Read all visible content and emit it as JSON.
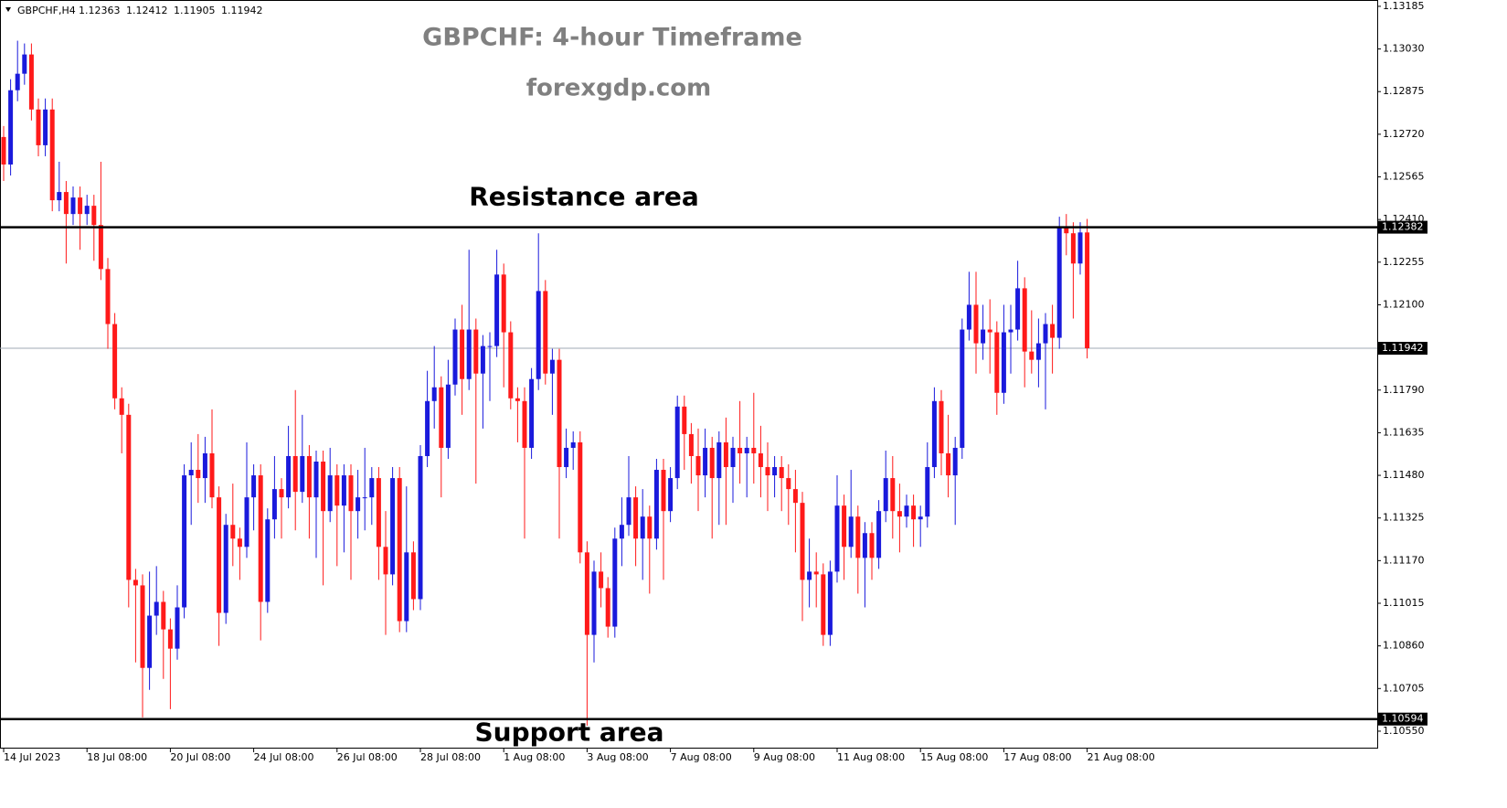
{
  "chart_data": {
    "type": "candlestick",
    "symbol": "GBPCHF,H4",
    "title": "GBPCHF: 4-hour Timeframe",
    "subtitle": "forexgdp.com",
    "up_color": "#1a1adc",
    "down_color": "#ff1a1a",
    "categories": [
      "14 Jul 2023",
      null,
      null,
      null,
      null,
      null,
      null,
      null,
      null,
      null,
      null,
      null,
      "18 Jul 08:00",
      null,
      null,
      null,
      null,
      null,
      null,
      null,
      null,
      null,
      null,
      null,
      "20 Jul 08:00",
      null,
      null,
      null,
      null,
      null,
      null,
      null,
      null,
      null,
      null,
      null,
      "24 Jul 08:00",
      null,
      null,
      null,
      null,
      null,
      null,
      null,
      null,
      null,
      null,
      null,
      "26 Jul 08:00",
      null,
      null,
      null,
      null,
      null,
      null,
      null,
      null,
      null,
      null,
      null,
      "28 Jul 08:00",
      null,
      null,
      null,
      null,
      null,
      null,
      null,
      null,
      null,
      null,
      null,
      "1 Aug 08:00",
      null,
      null,
      null,
      null,
      null,
      null,
      null,
      null,
      null,
      null,
      null,
      "3 Aug 08:00",
      null,
      null,
      null,
      null,
      null,
      null,
      null,
      null,
      null,
      null,
      null,
      "7 Aug 08:00",
      null,
      null,
      null,
      null,
      null,
      null,
      null,
      null,
      null,
      null,
      null,
      "9 Aug 08:00",
      null,
      null,
      null,
      null,
      null,
      null,
      null,
      null,
      null,
      null,
      null,
      "11 Aug 08:00",
      null,
      null,
      null,
      null,
      null,
      null,
      null,
      null,
      null,
      null,
      null,
      "15 Aug 08:00",
      null,
      null,
      null,
      null,
      null,
      null,
      null,
      null,
      null,
      null,
      null,
      "17 Aug 08:00",
      null,
      null,
      null,
      null,
      null,
      null,
      null,
      null,
      null,
      null,
      null,
      "21 Aug 08:00"
    ],
    "open": [
      1.1271,
      1.1261,
      1.1288,
      1.1294,
      1.1301,
      1.1281,
      1.1268,
      1.1281,
      1.1248,
      1.1251,
      1.1243,
      1.1249,
      1.1243,
      1.1246,
      1.1239,
      1.1223,
      1.1203,
      1.1176,
      1.117,
      1.111,
      1.1108,
      1.1078,
      1.1097,
      1.1102,
      1.1092,
      1.1085,
      1.11,
      1.1148,
      1.115,
      1.1147,
      1.1156,
      1.114,
      1.1098,
      1.113,
      1.1125,
      1.1122,
      1.114,
      1.1148,
      1.1102,
      1.1132,
      1.1143,
      1.114,
      1.1155,
      1.1142,
      1.1155,
      1.114,
      1.1153,
      1.1135,
      1.1148,
      1.1137,
      1.1148,
      1.1135,
      1.114,
      1.114,
      1.1147,
      1.1122,
      1.1112,
      1.1147,
      1.1095,
      1.112,
      1.1103,
      1.1155,
      1.1175,
      1.118,
      1.1158,
      1.1181,
      1.1201,
      1.1183,
      1.1201,
      1.1185,
      1.1195,
      1.1195,
      1.1221,
      1.12,
      1.1176,
      1.1175,
      1.1158,
      1.1183,
      1.1215,
      1.1185,
      1.119,
      1.1151,
      1.1158,
      1.116,
      1.112,
      1.109,
      1.1113,
      1.1107,
      1.1093,
      1.1125,
      1.113,
      1.114,
      1.1125,
      1.1133,
      1.1125,
      1.115,
      1.1135,
      1.1147,
      1.1173,
      1.1163,
      1.1155,
      1.1148,
      1.1158,
      1.1147,
      1.116,
      1.1151,
      1.1158,
      1.1156,
      1.1158,
      1.1156,
      1.1151,
      1.1148,
      1.1151,
      1.1147,
      1.1143,
      1.1138,
      1.111,
      1.1113,
      1.1112,
      1.109,
      1.1113,
      1.1137,
      1.1122,
      1.1133,
      1.1118,
      1.1127,
      1.1118,
      1.1135,
      1.1147,
      1.1135,
      1.1133,
      1.1137,
      1.1132,
      1.1133,
      1.1151,
      1.1175,
      1.1156,
      1.1148,
      1.1158,
      1.1201,
      1.121,
      1.1196,
      1.1201,
      1.12,
      1.1178,
      1.12,
      1.1201,
      1.1216,
      1.1193,
      1.119,
      1.1196,
      1.1203,
      1.1198,
      1.1238,
      1.1236,
      1.1225,
      1.12363
    ],
    "high": [
      1.1275,
      1.1292,
      1.1306,
      1.1305,
      1.1305,
      1.1285,
      1.1285,
      1.1285,
      1.1262,
      1.1255,
      1.1253,
      1.1253,
      1.125,
      1.125,
      1.1262,
      1.1227,
      1.1207,
      1.118,
      1.1174,
      1.1114,
      1.1112,
      1.1113,
      1.1115,
      1.1106,
      1.1096,
      1.1108,
      1.1152,
      1.116,
      1.1163,
      1.1162,
      1.1172,
      1.1144,
      1.1134,
      1.1145,
      1.1129,
      1.116,
      1.1152,
      1.1152,
      1.1136,
      1.1155,
      1.1147,
      1.1166,
      1.1179,
      1.117,
      1.1159,
      1.1157,
      1.1157,
      1.1158,
      1.1152,
      1.1152,
      1.1152,
      1.115,
      1.1158,
      1.1151,
      1.1151,
      1.1135,
      1.1151,
      1.1151,
      1.1144,
      1.1124,
      1.1159,
      1.1186,
      1.1195,
      1.1184,
      1.119,
      1.1205,
      1.121,
      1.123,
      1.1205,
      1.1199,
      1.12,
      1.123,
      1.1225,
      1.1204,
      1.118,
      1.118,
      1.1187,
      1.1236,
      1.1219,
      1.1194,
      1.1194,
      1.1165,
      1.1164,
      1.1164,
      1.1124,
      1.1117,
      1.112,
      1.1111,
      1.1129,
      1.114,
      1.1155,
      1.1144,
      1.1143,
      1.1137,
      1.1154,
      1.1154,
      1.1151,
      1.1177,
      1.1177,
      1.1167,
      1.1165,
      1.1165,
      1.1162,
      1.1164,
      1.1169,
      1.1162,
      1.1175,
      1.1162,
      1.1178,
      1.1166,
      1.116,
      1.1155,
      1.1155,
      1.1152,
      1.115,
      1.1142,
      1.1125,
      1.112,
      1.1116,
      1.1117,
      1.1148,
      1.1141,
      1.115,
      1.1137,
      1.1131,
      1.1131,
      1.1139,
      1.1157,
      1.1155,
      1.1145,
      1.1141,
      1.1141,
      1.1137,
      1.116,
      1.118,
      1.1179,
      1.117,
      1.1162,
      1.1205,
      1.1222,
      1.1222,
      1.121,
      1.1212,
      1.1204,
      1.121,
      1.121,
      1.1226,
      1.122,
      1.1208,
      1.1205,
      1.1207,
      1.121,
      1.1242,
      1.1243,
      1.124,
      1.124,
      1.12412
    ],
    "low": [
      1.1255,
      1.1257,
      1.1284,
      1.129,
      1.1277,
      1.1264,
      1.1264,
      1.1244,
      1.1244,
      1.1225,
      1.1239,
      1.123,
      1.1239,
      1.1226,
      1.1219,
      1.1194,
      1.1172,
      1.1156,
      1.11,
      1.108,
      1.106,
      1.107,
      1.109,
      1.1074,
      1.1063,
      1.1081,
      1.1096,
      1.113,
      1.1138,
      1.1138,
      1.1136,
      1.1086,
      1.1094,
      1.1115,
      1.111,
      1.1118,
      1.1128,
      1.1088,
      1.1098,
      1.1125,
      1.1125,
      1.1136,
      1.1128,
      1.1138,
      1.1125,
      1.1118,
      1.1108,
      1.1131,
      1.1115,
      1.112,
      1.111,
      1.1125,
      1.1128,
      1.113,
      1.111,
      1.109,
      1.1108,
      1.1091,
      1.1091,
      1.1099,
      1.1099,
      1.1151,
      1.1165,
      1.114,
      1.1154,
      1.1177,
      1.117,
      1.1179,
      1.1145,
      1.1165,
      1.1175,
      1.1191,
      1.118,
      1.1172,
      1.116,
      1.1125,
      1.1154,
      1.1179,
      1.1181,
      1.117,
      1.1125,
      1.1147,
      1.115,
      1.1116,
      1.1057,
      1.108,
      1.11,
      1.1089,
      1.1089,
      1.1115,
      1.1126,
      1.1115,
      1.111,
      1.1105,
      1.1121,
      1.111,
      1.1131,
      1.1143,
      1.115,
      1.1145,
      1.1135,
      1.114,
      1.1125,
      1.113,
      1.113,
      1.1138,
      1.1145,
      1.114,
      1.1145,
      1.114,
      1.1135,
      1.114,
      1.1135,
      1.113,
      1.112,
      1.1095,
      1.11,
      1.11,
      1.1086,
      1.1086,
      1.1109,
      1.111,
      1.1118,
      1.1105,
      1.11,
      1.111,
      1.1114,
      1.1131,
      1.1125,
      1.112,
      1.1129,
      1.1122,
      1.1122,
      1.1129,
      1.1147,
      1.1148,
      1.114,
      1.113,
      1.1154,
      1.1197,
      1.1185,
      1.119,
      1.1185,
      1.117,
      1.1174,
      1.1185,
      1.1197,
      1.118,
      1.1185,
      1.118,
      1.1172,
      1.1185,
      1.1194,
      1.1228,
      1.1205,
      1.1221,
      1.11905
    ],
    "close": [
      1.1261,
      1.1288,
      1.1294,
      1.1301,
      1.1281,
      1.1268,
      1.1281,
      1.1248,
      1.1251,
      1.1243,
      1.1249,
      1.1243,
      1.1246,
      1.1239,
      1.1223,
      1.1203,
      1.1176,
      1.117,
      1.111,
      1.1108,
      1.1078,
      1.1097,
      1.1102,
      1.1092,
      1.1085,
      1.11,
      1.1148,
      1.115,
      1.1147,
      1.1156,
      1.114,
      1.1098,
      1.113,
      1.1125,
      1.1122,
      1.114,
      1.1148,
      1.1102,
      1.1132,
      1.1143,
      1.114,
      1.1155,
      1.1142,
      1.1155,
      1.114,
      1.1153,
      1.1135,
      1.1148,
      1.1137,
      1.1148,
      1.1135,
      1.114,
      1.114,
      1.1147,
      1.1122,
      1.1112,
      1.1147,
      1.1095,
      1.112,
      1.1103,
      1.1155,
      1.1175,
      1.118,
      1.1158,
      1.1181,
      1.1201,
      1.1183,
      1.1201,
      1.1185,
      1.1195,
      1.1195,
      1.1221,
      1.12,
      1.1176,
      1.1175,
      1.1158,
      1.1183,
      1.1215,
      1.1185,
      1.119,
      1.1151,
      1.1158,
      1.116,
      1.112,
      1.109,
      1.1113,
      1.1107,
      1.1093,
      1.1125,
      1.113,
      1.114,
      1.1125,
      1.1133,
      1.1125,
      1.115,
      1.1135,
      1.1147,
      1.1173,
      1.1163,
      1.1155,
      1.1148,
      1.1158,
      1.1147,
      1.116,
      1.1151,
      1.1158,
      1.1156,
      1.1158,
      1.1156,
      1.1151,
      1.1148,
      1.1151,
      1.1147,
      1.1143,
      1.1138,
      1.111,
      1.1113,
      1.1112,
      1.109,
      1.1113,
      1.1137,
      1.1122,
      1.1133,
      1.1118,
      1.1127,
      1.1118,
      1.1135,
      1.1147,
      1.1135,
      1.1133,
      1.1137,
      1.1132,
      1.1133,
      1.1151,
      1.1175,
      1.1156,
      1.1148,
      1.1158,
      1.1201,
      1.121,
      1.1196,
      1.1201,
      1.12,
      1.1178,
      1.12,
      1.1201,
      1.1216,
      1.1193,
      1.119,
      1.1196,
      1.1203,
      1.1198,
      1.1238,
      1.1236,
      1.1225,
      1.12363,
      1.11942
    ],
    "ylim": [
      1.1049,
      1.13208
    ],
    "yticks": [
      1.13185,
      {
        "value": 1.1303,
        "label": "1.13030"
      },
      1.12875,
      {
        "value": 1.1272,
        "label": "1.12720"
      },
      1.12565,
      {
        "value": 1.1241,
        "label": "1.12410"
      },
      1.12255,
      {
        "value": 1.121,
        "label": "1.12100"
      },
      {
        "value": 1.1179,
        "label": "1.11790"
      },
      1.11635,
      {
        "value": 1.1148,
        "label": "1.11480"
      },
      1.11325,
      {
        "value": 1.1117,
        "label": "1.11170"
      },
      1.11015,
      {
        "value": 1.1086,
        "label": "1.10860"
      },
      1.10705,
      {
        "value": 1.1055,
        "label": "1.10550"
      }
    ],
    "levels": [
      {
        "label": "Resistance area",
        "value": 1.12382
      },
      {
        "label": "Support area",
        "value": 1.10594
      }
    ]
  }
}
